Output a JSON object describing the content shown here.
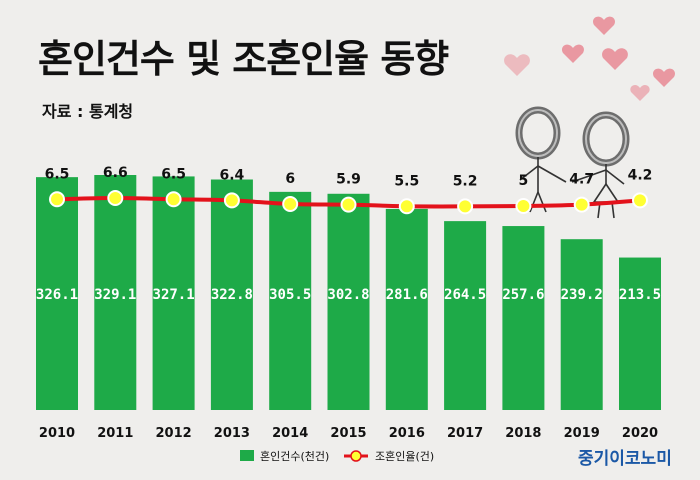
{
  "title": "혼인건수 및 조혼인율 동향",
  "source": "자료 : 통계청",
  "brand": "중기이코노미",
  "colors": {
    "bar": "#1eaa48",
    "line": "#e3121b",
    "marker_fill": "#ffff33",
    "marker_stroke": "#ffffff",
    "title": "#111111",
    "brand": "#1b58a6",
    "background": "#efeeec",
    "hearts": "#e98a95"
  },
  "decoration": {
    "image": "two-rings-couple-with-hearts"
  },
  "chart_data": {
    "type": "bar",
    "categories": [
      "2010",
      "2011",
      "2012",
      "2013",
      "2014",
      "2015",
      "2016",
      "2017",
      "2018",
      "2019",
      "2020"
    ],
    "series": [
      {
        "name": "혼인건수(천건)",
        "type": "bar",
        "values": [
          326.1,
          329.1,
          327.1,
          322.8,
          305.5,
          302.8,
          281.6,
          264.5,
          257.6,
          239.2,
          213.5
        ],
        "labels": [
          "326.1",
          "329.1",
          "327.1",
          "322.8",
          "305.5",
          "302.8",
          "281.6",
          "264.5",
          "257.6",
          "239.2",
          "213.5"
        ]
      },
      {
        "name": "조혼인율(건)",
        "type": "line",
        "values": [
          6.5,
          6.6,
          6.5,
          6.4,
          6,
          5.9,
          5.5,
          5.2,
          5,
          4.7,
          4.2
        ],
        "labels": [
          "6.5",
          "6.6",
          "6.5",
          "6.4",
          "6",
          "5.9",
          "5.5",
          "5.2",
          "5",
          "4.7",
          "4.2"
        ]
      }
    ],
    "legend": {
      "position": "bottom",
      "items": [
        "혼인건수(천건)",
        "조혼인율(건)"
      ]
    },
    "grid": false
  }
}
